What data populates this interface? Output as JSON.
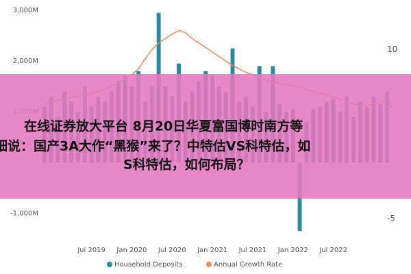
{
  "chart_data": {
    "type": "bar",
    "categories": [
      null,
      null,
      null,
      null,
      null,
      null,
      null,
      "Jul 2019",
      null,
      null,
      null,
      null,
      null,
      "Jan 2020",
      null,
      null,
      null,
      null,
      null,
      "Jul 2020",
      null,
      null,
      null,
      null,
      null,
      "Jan 2021",
      null,
      null,
      null,
      null,
      null,
      "Jul 2021",
      null,
      null,
      null,
      null,
      null,
      "Jan 2022",
      null,
      null,
      null,
      null,
      null,
      "Jul 2022",
      null,
      null,
      null,
      null,
      null,
      null,
      null,
      null
    ],
    "series": [
      {
        "name": "Household Deposits",
        "color": "#2b8a9f",
        "values": [
          1100,
          1300,
          900,
          1400,
          1200,
          1000,
          1500,
          1100,
          1300,
          1200,
          1400,
          1600,
          1700,
          1500,
          1800,
          1200,
          1500,
          2950,
          1500,
          1300,
          1950,
          1200,
          1400,
          1600,
          1800,
          1700,
          1500,
          1400,
          2250,
          1200,
          1300,
          1100,
          1900,
          1000,
          1900,
          1150,
          1000,
          1050,
          -1350,
          800,
          1050,
          1100,
          1200,
          1250,
          1000,
          1300,
          900,
          1200,
          1100,
          1300,
          1150,
          1400
        ]
      },
      {
        "name": "Annual Growth Rate",
        "color": "#ef8a5e",
        "type": "line",
        "axis": "y2",
        "values": [
          5.2,
          5.4,
          5.5,
          5.6,
          5.8,
          5.9,
          6.0,
          6.1,
          6.3,
          6.5,
          6.8,
          7.1,
          7.4,
          7.8,
          8.3,
          9.2,
          10.0,
          10.6,
          11.0,
          11.4,
          11.7,
          11.5,
          11.0,
          10.6,
          10.2,
          9.8,
          9.4,
          9.0,
          8.6,
          8.3,
          8.0,
          7.8,
          7.5,
          7.3,
          7.1,
          7.0,
          6.9,
          6.8,
          6.7,
          6.5,
          6.3,
          6.1,
          6.0,
          5.8,
          5.6,
          5.4,
          5.2,
          5.0,
          5.1,
          5.2,
          5.3,
          5.4
        ]
      }
    ],
    "ylim": [
      -1400,
      3000
    ],
    "yticks": [
      {
        "value": -1000,
        "label": "-1,000M"
      },
      {
        "value": 1000,
        "label": "1,000M"
      },
      {
        "value": 2000,
        "label": "2,000M"
      },
      {
        "value": 3000,
        "label": "3,000M"
      }
    ],
    "y2lim": [
      -6.3,
      13.5
    ],
    "y2ticks": [
      -5,
      5,
      10
    ],
    "grid": false
  },
  "banner": {
    "lines": [
      "在线证券放大平台 8月20日华夏富国博时南方等",
      "细说：国产3A大作“黑猴”来了？中特估VS科特估，如",
      "S科特估，如何布局？"
    ]
  }
}
